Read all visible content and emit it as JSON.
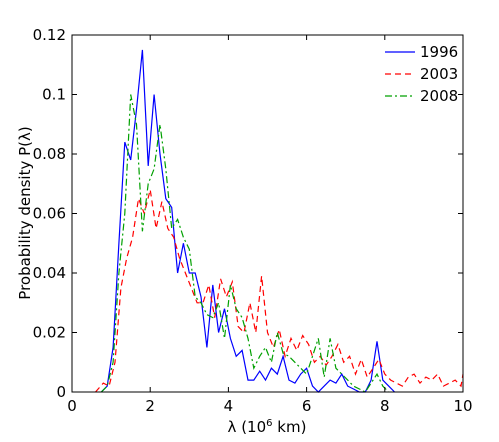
{
  "chart_data": {
    "type": "line",
    "title": "",
    "xlabel": "λ (10",
    "xlabel_sup": "6",
    "xlabel_tail": " km)",
    "ylabel": "Probability density P(λ)",
    "xlim": [
      0,
      10
    ],
    "ylim": [
      0,
      0.12
    ],
    "xticks": [
      0,
      2,
      4,
      6,
      8,
      10
    ],
    "xtick_labels": [
      "0",
      "2",
      "4",
      "6",
      "8",
      "10"
    ],
    "yticks": [
      0,
      0.02,
      0.04,
      0.06,
      0.08,
      0.1,
      0.12
    ],
    "ytick_labels": [
      "0",
      "0.02",
      "0.04",
      "0.06",
      "0.08",
      "0.1",
      "0.12"
    ],
    "grid": false,
    "legend_position": "top-right",
    "series": [
      {
        "name": "1996",
        "color": "#0000ff",
        "dash": "solid",
        "x": [
          0.75,
          0.9,
          1.05,
          1.2,
          1.35,
          1.5,
          1.65,
          1.8,
          1.95,
          2.1,
          2.25,
          2.4,
          2.55,
          2.7,
          2.85,
          3.0,
          3.15,
          3.3,
          3.45,
          3.6,
          3.75,
          3.9,
          4.05,
          4.2,
          4.35,
          4.5,
          4.65,
          4.8,
          4.95,
          5.1,
          5.25,
          5.4,
          5.55,
          5.7,
          5.85,
          6.0,
          6.15,
          6.3,
          6.45,
          6.6,
          6.75,
          6.9,
          7.05,
          7.2,
          7.35,
          7.5,
          7.65,
          7.8,
          7.95,
          8.1,
          8.25
        ],
        "y": [
          0.0,
          0.002,
          0.015,
          0.05,
          0.084,
          0.078,
          0.095,
          0.115,
          0.076,
          0.1,
          0.08,
          0.065,
          0.062,
          0.04,
          0.05,
          0.04,
          0.04,
          0.032,
          0.015,
          0.036,
          0.02,
          0.028,
          0.018,
          0.012,
          0.014,
          0.004,
          0.004,
          0.007,
          0.004,
          0.008,
          0.006,
          0.012,
          0.004,
          0.003,
          0.006,
          0.008,
          0.002,
          0.0,
          0.002,
          0.004,
          0.003,
          0.006,
          0.002,
          0.001,
          0.0,
          0.0,
          0.004,
          0.017,
          0.004,
          0.002,
          0.0
        ]
      },
      {
        "name": "2003",
        "color": "#ff0000",
        "dash": "6,4",
        "x": [
          0.6,
          0.8,
          0.95,
          1.1,
          1.25,
          1.4,
          1.55,
          1.7,
          1.85,
          2.0,
          2.15,
          2.3,
          2.45,
          2.6,
          2.75,
          2.9,
          3.05,
          3.2,
          3.35,
          3.5,
          3.65,
          3.8,
          3.95,
          4.1,
          4.25,
          4.4,
          4.55,
          4.7,
          4.85,
          5.0,
          5.15,
          5.3,
          5.45,
          5.6,
          5.75,
          5.9,
          6.05,
          6.2,
          6.35,
          6.5,
          6.65,
          6.8,
          6.95,
          7.1,
          7.25,
          7.4,
          7.55,
          7.7,
          7.85,
          8.0,
          8.15,
          8.3,
          8.45,
          8.6,
          8.75,
          8.9,
          9.05,
          9.2,
          9.35,
          9.5,
          9.65,
          9.8,
          9.95,
          10.0
        ],
        "y": [
          0.0,
          0.003,
          0.002,
          0.01,
          0.035,
          0.045,
          0.052,
          0.065,
          0.06,
          0.068,
          0.055,
          0.064,
          0.055,
          0.052,
          0.045,
          0.04,
          0.035,
          0.03,
          0.03,
          0.036,
          0.025,
          0.038,
          0.032,
          0.037,
          0.022,
          0.02,
          0.03,
          0.02,
          0.039,
          0.02,
          0.015,
          0.021,
          0.012,
          0.018,
          0.014,
          0.019,
          0.016,
          0.01,
          0.012,
          0.009,
          0.012,
          0.016,
          0.01,
          0.012,
          0.006,
          0.011,
          0.005,
          0.008,
          0.011,
          0.006,
          0.004,
          0.003,
          0.002,
          0.005,
          0.006,
          0.003,
          0.005,
          0.004,
          0.006,
          0.002,
          0.003,
          0.004,
          0.002,
          0.006
        ]
      },
      {
        "name": "2008",
        "color": "#00a000",
        "dash": "7,3,2,3",
        "x": [
          0.75,
          0.9,
          1.05,
          1.2,
          1.35,
          1.5,
          1.65,
          1.8,
          1.95,
          2.1,
          2.25,
          2.4,
          2.55,
          2.7,
          2.85,
          3.0,
          3.15,
          3.3,
          3.45,
          3.6,
          3.75,
          3.9,
          4.05,
          4.2,
          4.35,
          4.5,
          4.65,
          4.8,
          4.95,
          5.1,
          5.25,
          5.4,
          5.55,
          5.7,
          5.85,
          6.0,
          6.15,
          6.3,
          6.45,
          6.6,
          6.75,
          6.9,
          7.05,
          7.2,
          7.35,
          7.5,
          7.65,
          7.8,
          7.95,
          8.1
        ],
        "y": [
          0.0,
          0.002,
          0.01,
          0.04,
          0.06,
          0.1,
          0.09,
          0.054,
          0.07,
          0.075,
          0.09,
          0.075,
          0.055,
          0.058,
          0.052,
          0.048,
          0.032,
          0.03,
          0.026,
          0.025,
          0.03,
          0.018,
          0.036,
          0.028,
          0.025,
          0.018,
          0.008,
          0.012,
          0.015,
          0.01,
          0.02,
          0.013,
          0.012,
          0.01,
          0.008,
          0.006,
          0.012,
          0.018,
          0.005,
          0.018,
          0.008,
          0.006,
          0.004,
          0.002,
          0.001,
          0.0,
          0.003,
          0.006,
          0.002,
          0.0
        ]
      }
    ]
  }
}
